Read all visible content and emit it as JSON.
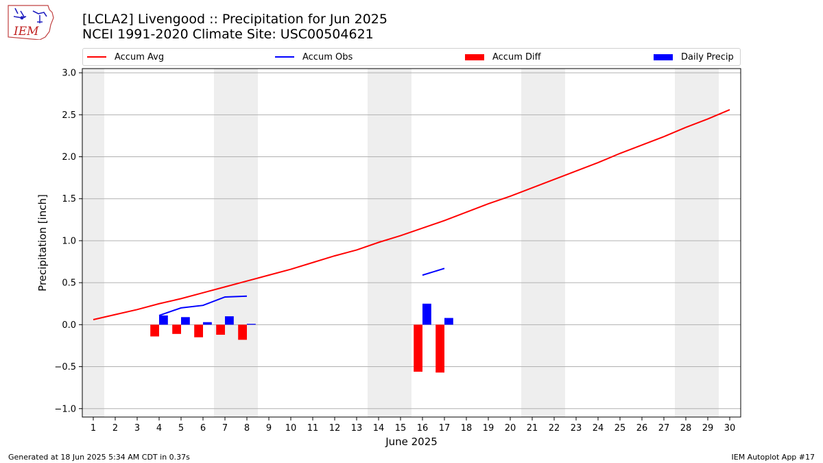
{
  "header": {
    "title_line1": "[LCLA2] Livengood :: Precipitation for Jun 2025",
    "title_line2": "NCEI 1991-2020 Climate Site: USC00504621"
  },
  "logo": {
    "text": "IEM",
    "icon": "iem-iowa-logo"
  },
  "footer": {
    "generated": "Generated at 18 Jun 2025 5:34 AM CDT in 0.37s",
    "app": "IEM Autoplot App #17"
  },
  "colors": {
    "avg": "#ff0000",
    "obs": "#0000ff",
    "diff": "#ff0000",
    "daily": "#0000ff",
    "weekend": "#eeeeee",
    "grid": "#b0b0b0"
  },
  "chart_data": {
    "type": "bar",
    "xlabel": "June 2025",
    "ylabel": "Precipitation [inch]",
    "xlim": [
      0.5,
      30.5
    ],
    "ylim": [
      -1.1,
      3.05
    ],
    "yticks": [
      -1.0,
      -0.5,
      0.0,
      0.5,
      1.0,
      1.5,
      2.0,
      2.5,
      3.0
    ],
    "ytick_labels": [
      "−1.0",
      "−0.5",
      "0.0",
      "0.5",
      "1.0",
      "1.5",
      "2.0",
      "2.5",
      "3.0"
    ],
    "grid": true,
    "legend_placement": "top",
    "x": [
      1,
      2,
      3,
      4,
      5,
      6,
      7,
      8,
      9,
      10,
      11,
      12,
      13,
      14,
      15,
      16,
      17,
      18,
      19,
      20,
      21,
      22,
      23,
      24,
      25,
      26,
      27,
      28,
      29,
      30
    ],
    "weekend_spans": [
      [
        0.5,
        1.5
      ],
      [
        6.5,
        8.5
      ],
      [
        13.5,
        15.5
      ],
      [
        20.5,
        22.5
      ],
      [
        27.5,
        29.5
      ]
    ],
    "series": [
      {
        "name": "Accum Avg",
        "kind": "line",
        "segments": [
          {
            "x": [
              1,
              2,
              3,
              4,
              5,
              6,
              7,
              8,
              9,
              10,
              11,
              12,
              13,
              14,
              15,
              16,
              17,
              18,
              19,
              20,
              21,
              22,
              23,
              24,
              25,
              26,
              27,
              28,
              29,
              30
            ],
            "y": [
              0.06,
              0.12,
              0.18,
              0.25,
              0.31,
              0.38,
              0.45,
              0.52,
              0.59,
              0.66,
              0.74,
              0.82,
              0.89,
              0.98,
              1.06,
              1.15,
              1.24,
              1.34,
              1.44,
              1.53,
              1.63,
              1.73,
              1.83,
              1.93,
              2.04,
              2.14,
              2.24,
              2.35,
              2.45,
              2.56
            ]
          }
        ]
      },
      {
        "name": "Accum Obs",
        "kind": "line",
        "segments": [
          {
            "x": [
              4,
              5,
              6,
              7,
              8
            ],
            "y": [
              0.11,
              0.2,
              0.23,
              0.33,
              0.34
            ]
          },
          {
            "x": [
              16,
              17
            ],
            "y": [
              0.59,
              0.67
            ]
          }
        ]
      },
      {
        "name": "Accum Diff",
        "kind": "bar",
        "offset": -0.2,
        "x": [
          4,
          5,
          6,
          7,
          8,
          16,
          17
        ],
        "values": [
          -0.14,
          -0.11,
          -0.15,
          -0.12,
          -0.18,
          -0.56,
          -0.57
        ]
      },
      {
        "name": "Daily Precip",
        "kind": "bar",
        "offset": 0.2,
        "x": [
          4,
          5,
          6,
          7,
          8,
          16,
          17
        ],
        "values": [
          0.11,
          0.09,
          0.03,
          0.1,
          0.01,
          0.25,
          0.08
        ]
      }
    ]
  }
}
